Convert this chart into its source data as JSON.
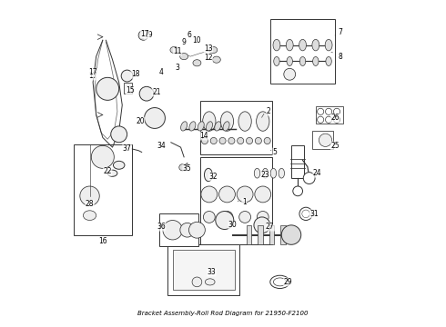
{
  "title": "Bracket Assembly-Roll Rod Diagram for 21950-F2100",
  "background_color": "#ffffff",
  "border_color": "#000000",
  "line_color": "#333333",
  "text_color": "#000000",
  "figsize": [
    4.9,
    3.6
  ],
  "dpi": 100
}
